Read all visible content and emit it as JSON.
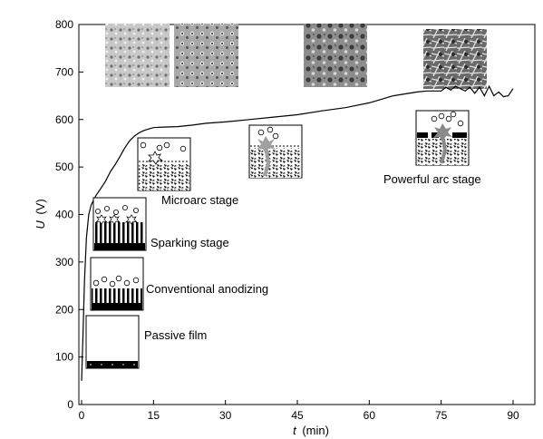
{
  "chart_data": {
    "type": "line",
    "xlabel": {
      "var": "t",
      "unit": "(min)"
    },
    "ylabel": {
      "var": "U",
      "unit": "(V)"
    },
    "xlim": [
      0,
      90
    ],
    "ylim": [
      0,
      800
    ],
    "xticks": [
      0,
      15,
      30,
      45,
      60,
      75,
      90
    ],
    "yticks": [
      0,
      100,
      200,
      300,
      400,
      500,
      600,
      700,
      800
    ],
    "grid": false,
    "series": [
      {
        "x": [
          0,
          0.3,
          0.6,
          1,
          1.5,
          2,
          3,
          4,
          5,
          6,
          7,
          8,
          9,
          10,
          11,
          12,
          13,
          14,
          15,
          17,
          20,
          23,
          26,
          30,
          35,
          40,
          45,
          50,
          55,
          60,
          65,
          70,
          72,
          74,
          75,
          76,
          77,
          78,
          79,
          80,
          81,
          82,
          83,
          84,
          85,
          86,
          87,
          88,
          89,
          90
        ],
        "y": [
          50,
          150,
          260,
          350,
          400,
          420,
          440,
          455,
          470,
          490,
          505,
          522,
          540,
          555,
          565,
          572,
          577,
          580,
          583,
          584,
          585,
          588,
          592,
          595,
          600,
          605,
          610,
          618,
          625,
          635,
          650,
          658,
          660,
          660,
          660,
          668,
          662,
          670,
          665,
          660,
          668,
          655,
          668,
          650,
          670,
          650,
          658,
          648,
          650,
          665
        ]
      }
    ],
    "annotations": [
      "Passive film",
      "Conventional anodizing",
      "Sparking stage",
      "Microarc stage",
      "Powerful arc stage"
    ]
  }
}
